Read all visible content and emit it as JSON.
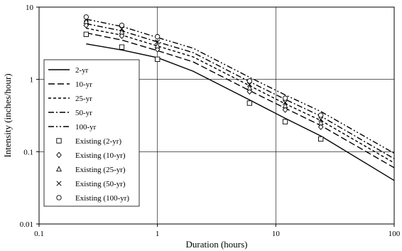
{
  "chart_data": {
    "type": "line",
    "title": "",
    "xlabel": "Duration (hours)",
    "ylabel": "Intensity (inches/hour)",
    "xscale": "log",
    "yscale": "log",
    "xlim": [
      0.1,
      100
    ],
    "ylim": [
      0.01,
      10
    ],
    "xticks": [
      0.1,
      1,
      10,
      100
    ],
    "xtick_labels": [
      "0.1",
      "1",
      "10",
      "100"
    ],
    "yticks": [
      0.01,
      0.1,
      1,
      10
    ],
    "ytick_labels": [
      "0.01",
      "0.1",
      "1",
      "10"
    ],
    "grid": true,
    "legend_position": "left",
    "series": [
      {
        "name": "2-yr",
        "kind": "line",
        "dash": "solid",
        "x": [
          0.25,
          0.5,
          1,
          2,
          6,
          12,
          24,
          100
        ],
        "y": [
          3.1,
          2.55,
          2.0,
          1.3,
          0.52,
          0.29,
          0.165,
          0.04
        ]
      },
      {
        "name": "10-yr",
        "kind": "line",
        "dash": "long-dash",
        "x": [
          0.25,
          0.5,
          1,
          2,
          6,
          12,
          24,
          100
        ],
        "y": [
          4.4,
          3.5,
          2.5,
          1.75,
          0.7,
          0.4,
          0.23,
          0.06
        ]
      },
      {
        "name": "25-yr",
        "kind": "line",
        "dash": "short-dash",
        "x": [
          0.25,
          0.5,
          1,
          2,
          6,
          12,
          24,
          100
        ],
        "y": [
          5.1,
          4.1,
          2.9,
          2.05,
          0.82,
          0.46,
          0.27,
          0.07
        ]
      },
      {
        "name": "50-yr",
        "kind": "line",
        "dash": "dash-dot",
        "x": [
          0.25,
          0.5,
          1,
          2,
          6,
          12,
          24,
          100
        ],
        "y": [
          5.9,
          4.7,
          3.3,
          2.35,
          0.93,
          0.53,
          0.31,
          0.08
        ]
      },
      {
        "name": "100-yr",
        "kind": "line",
        "dash": "dash-dot-dot",
        "x": [
          0.25,
          0.5,
          1,
          2,
          6,
          12,
          24,
          100
        ],
        "y": [
          6.8,
          5.4,
          3.8,
          2.7,
          1.07,
          0.61,
          0.36,
          0.095
        ]
      },
      {
        "name": "Existing (2-yr)",
        "kind": "marker",
        "marker": "square",
        "x": [
          0.25,
          0.5,
          1,
          6,
          12,
          24
        ],
        "y": [
          4.2,
          2.8,
          1.9,
          0.47,
          0.26,
          0.15
        ]
      },
      {
        "name": "Existing (10-yr)",
        "kind": "marker",
        "marker": "diamond",
        "x": [
          0.25,
          0.5,
          1,
          6,
          12,
          24
        ],
        "y": [
          5.6,
          4.0,
          2.6,
          0.68,
          0.38,
          0.22
        ]
      },
      {
        "name": "Existing (25-yr)",
        "kind": "marker",
        "marker": "triangle",
        "x": [
          0.25,
          0.5,
          1,
          6,
          12,
          24
        ],
        "y": [
          6.3,
          4.5,
          2.9,
          0.76,
          0.43,
          0.25
        ]
      },
      {
        "name": "Existing (50-yr)",
        "kind": "marker",
        "marker": "x",
        "x": [
          0.25,
          0.5,
          1,
          6,
          12,
          24
        ],
        "y": [
          6.8,
          5.0,
          3.3,
          0.85,
          0.48,
          0.28
        ]
      },
      {
        "name": "Existing (100-yr)",
        "kind": "marker",
        "marker": "circle",
        "x": [
          0.25,
          0.5,
          1,
          6,
          12,
          24
        ],
        "y": [
          7.3,
          5.6,
          3.9,
          0.95,
          0.55,
          0.32
        ]
      }
    ]
  }
}
